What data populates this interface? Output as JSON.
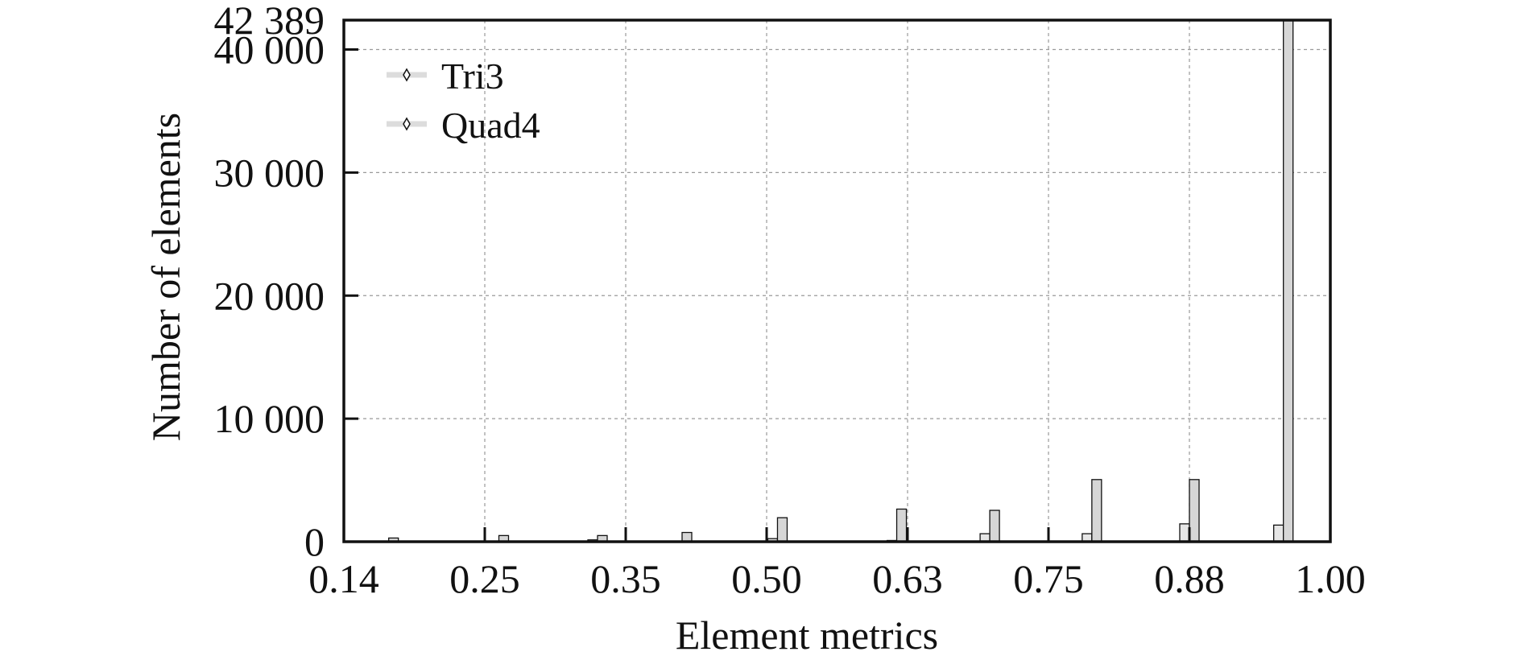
{
  "chart_data": {
    "type": "bar",
    "title": "",
    "xlabel": "Element metrics",
    "ylabel": "Number of elements",
    "x_ticks": [
      "0.14",
      "0.25",
      "0.35",
      "0.50",
      "0.63",
      "0.75",
      "0.88",
      "1.00"
    ],
    "y_ticks": [
      "0",
      "10 000",
      "20 000",
      "30 000",
      "40 000",
      "42 389"
    ],
    "y_tick_values": [
      0,
      10000,
      20000,
      30000,
      40000,
      42389
    ],
    "ylim": [
      0,
      42389
    ],
    "grid": true,
    "legend_position": "top-left",
    "bin_centers": [
      0.175,
      0.26,
      0.33,
      0.41,
      0.51,
      0.62,
      0.7,
      0.79,
      0.88,
      0.96
    ],
    "series": [
      {
        "name": "Tri3",
        "values": [
          0,
          0,
          150,
          0,
          250,
          100,
          650,
          650,
          1450,
          1350
        ]
      },
      {
        "name": "Quad4",
        "values": [
          300,
          500,
          500,
          750,
          1950,
          2650,
          2550,
          5050,
          5050,
          42389
        ]
      }
    ],
    "colors": {
      "Tri3": "#e6e6e6",
      "Quad4": "#d6d6d6",
      "bar_edge": "#111111",
      "grid": "#9a9a9a",
      "axis": "#111111"
    }
  }
}
